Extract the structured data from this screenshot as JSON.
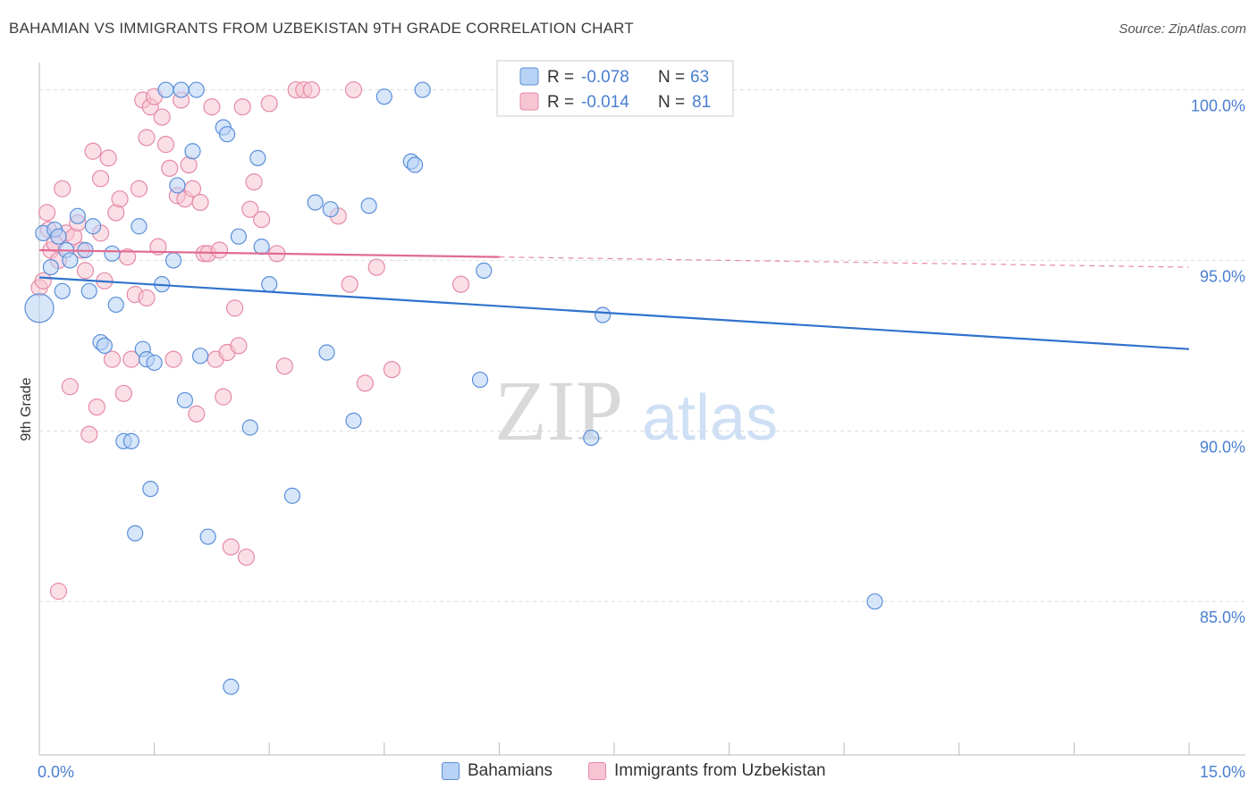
{
  "title": "BAHAMIAN VS IMMIGRANTS FROM UZBEKISTAN 9TH GRADE CORRELATION CHART",
  "source": "Source: ZipAtlas.com",
  "watermark": {
    "part1": "ZIP",
    "part2": "atlas"
  },
  "colors": {
    "blue": "#5a8fd8",
    "blue_fill": "#b8d2f5",
    "blue_line": "#2f72cc",
    "pink": "#e58aa6",
    "pink_fill": "#f7c4d3",
    "pink_line": "#e06b92",
    "axis_text": "#4a7fd0"
  },
  "stats_box": {
    "rows": [
      {
        "r_label": "R =",
        "r_value": "-0.078",
        "n_label": "N =",
        "n_value": "63"
      },
      {
        "r_label": "R =",
        "r_value": "-0.014",
        "n_label": "N =",
        "n_value": "81"
      }
    ]
  },
  "legend": {
    "items": [
      "Bahamians",
      "Immigrants from Uzbekistan"
    ]
  },
  "chart_data": {
    "type": "scatter",
    "xlabel": "",
    "ylabel": "9th Grade",
    "xlim": [
      0.0,
      15.0
    ],
    "ylim": [
      80.5,
      100.8
    ],
    "x_tick_labels": [
      "0.0%",
      "15.0%"
    ],
    "y_ticks": [
      85.0,
      90.0,
      95.0,
      100.0
    ],
    "y_tick_labels": [
      "85.0%",
      "90.0%",
      "95.0%",
      "100.0%"
    ],
    "grid": true,
    "series": [
      {
        "name": "Bahamians",
        "trend": {
          "x": [
            0.0,
            15.0
          ],
          "y": [
            94.5,
            92.4
          ]
        },
        "points": [
          [
            0.0,
            93.6
          ],
          [
            0.05,
            95.8
          ],
          [
            0.15,
            94.8
          ],
          [
            0.2,
            95.9
          ],
          [
            0.25,
            95.7
          ],
          [
            0.3,
            94.1
          ],
          [
            0.35,
            95.3
          ],
          [
            0.4,
            95.0
          ],
          [
            0.5,
            96.3
          ],
          [
            0.6,
            95.3
          ],
          [
            0.65,
            94.1
          ],
          [
            0.7,
            96.0
          ],
          [
            0.8,
            92.6
          ],
          [
            0.85,
            92.5
          ],
          [
            0.95,
            95.2
          ],
          [
            1.0,
            93.7
          ],
          [
            1.1,
            89.7
          ],
          [
            1.2,
            89.7
          ],
          [
            1.25,
            87.0
          ],
          [
            1.3,
            96.0
          ],
          [
            1.35,
            92.4
          ],
          [
            1.4,
            92.1
          ],
          [
            1.45,
            88.3
          ],
          [
            1.5,
            92.0
          ],
          [
            1.6,
            94.3
          ],
          [
            1.65,
            100.0
          ],
          [
            1.75,
            95.0
          ],
          [
            1.8,
            97.2
          ],
          [
            1.85,
            100.0
          ],
          [
            1.9,
            90.9
          ],
          [
            2.0,
            98.2
          ],
          [
            2.05,
            100.0
          ],
          [
            2.1,
            92.2
          ],
          [
            2.2,
            86.9
          ],
          [
            2.4,
            98.9
          ],
          [
            2.45,
            98.7
          ],
          [
            2.5,
            82.5
          ],
          [
            2.6,
            95.7
          ],
          [
            2.75,
            90.1
          ],
          [
            2.85,
            98.0
          ],
          [
            2.9,
            95.4
          ],
          [
            3.0,
            94.3
          ],
          [
            3.3,
            88.1
          ],
          [
            3.6,
            96.7
          ],
          [
            3.75,
            92.3
          ],
          [
            3.8,
            96.5
          ],
          [
            4.1,
            90.3
          ],
          [
            4.3,
            96.6
          ],
          [
            4.5,
            99.8
          ],
          [
            4.85,
            97.9
          ],
          [
            4.9,
            97.8
          ],
          [
            5.0,
            100.0
          ],
          [
            5.75,
            91.5
          ],
          [
            5.8,
            94.7
          ],
          [
            7.2,
            89.8
          ],
          [
            7.35,
            93.4
          ],
          [
            7.4,
            100.0
          ],
          [
            10.9,
            85.0
          ]
        ]
      },
      {
        "name": "Immigrants from Uzbekistan",
        "trend": {
          "x": [
            0.0,
            15.0
          ],
          "y": [
            95.3,
            94.8
          ]
        },
        "points": [
          [
            0.0,
            94.2
          ],
          [
            0.05,
            94.4
          ],
          [
            0.1,
            96.4
          ],
          [
            0.12,
            95.9
          ],
          [
            0.15,
            95.3
          ],
          [
            0.2,
            95.5
          ],
          [
            0.25,
            95.0
          ],
          [
            0.3,
            97.1
          ],
          [
            0.35,
            95.8
          ],
          [
            0.4,
            91.3
          ],
          [
            0.45,
            95.7
          ],
          [
            0.5,
            96.1
          ],
          [
            0.55,
            95.3
          ],
          [
            0.6,
            94.7
          ],
          [
            0.65,
            89.9
          ],
          [
            0.7,
            98.2
          ],
          [
            0.75,
            90.7
          ],
          [
            0.8,
            97.4
          ],
          [
            0.85,
            94.4
          ],
          [
            0.9,
            98.0
          ],
          [
            0.95,
            92.1
          ],
          [
            1.0,
            96.4
          ],
          [
            1.05,
            96.8
          ],
          [
            1.1,
            91.1
          ],
          [
            1.15,
            95.1
          ],
          [
            1.2,
            92.1
          ],
          [
            1.25,
            94.0
          ],
          [
            1.3,
            97.1
          ],
          [
            1.35,
            99.7
          ],
          [
            1.4,
            98.6
          ],
          [
            1.45,
            99.5
          ],
          [
            1.5,
            99.8
          ],
          [
            1.55,
            95.4
          ],
          [
            1.6,
            99.2
          ],
          [
            1.65,
            98.4
          ],
          [
            1.7,
            97.7
          ],
          [
            1.75,
            92.1
          ],
          [
            1.8,
            96.9
          ],
          [
            1.85,
            99.7
          ],
          [
            1.9,
            96.8
          ],
          [
            1.95,
            97.8
          ],
          [
            2.0,
            97.1
          ],
          [
            2.05,
            90.5
          ],
          [
            2.1,
            96.7
          ],
          [
            2.15,
            95.2
          ],
          [
            2.2,
            95.2
          ],
          [
            2.25,
            99.5
          ],
          [
            2.3,
            92.1
          ],
          [
            2.35,
            95.3
          ],
          [
            2.4,
            91.0
          ],
          [
            2.45,
            92.3
          ],
          [
            2.5,
            86.6
          ],
          [
            2.55,
            93.6
          ],
          [
            2.6,
            92.5
          ],
          [
            2.65,
            99.5
          ],
          [
            2.7,
            86.3
          ],
          [
            2.75,
            96.5
          ],
          [
            2.8,
            97.3
          ],
          [
            2.9,
            96.2
          ],
          [
            3.0,
            99.6
          ],
          [
            3.1,
            95.2
          ],
          [
            3.2,
            91.9
          ],
          [
            3.35,
            100.0
          ],
          [
            3.45,
            100.0
          ],
          [
            3.55,
            100.0
          ],
          [
            3.9,
            96.3
          ],
          [
            4.05,
            94.3
          ],
          [
            4.1,
            100.0
          ],
          [
            4.25,
            91.4
          ],
          [
            4.4,
            94.8
          ],
          [
            4.6,
            91.8
          ],
          [
            5.5,
            94.3
          ],
          [
            0.25,
            85.3
          ],
          [
            1.4,
            93.9
          ],
          [
            0.8,
            95.8
          ]
        ]
      }
    ]
  }
}
